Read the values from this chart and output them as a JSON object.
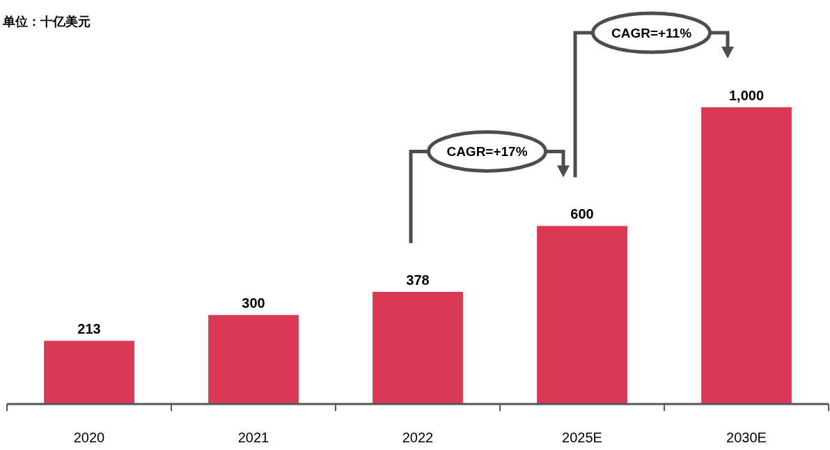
{
  "chart_data": {
    "type": "bar",
    "title": "单位：十亿美元",
    "categories": [
      "2020",
      "2021",
      "2022",
      "2025E",
      "2030E"
    ],
    "values": [
      213,
      300,
      378,
      600,
      1000
    ],
    "color": "#d93954",
    "data_labels": true,
    "value_labels": [
      "213",
      "300",
      "378",
      "600",
      "1,000"
    ],
    "annotations": [
      "CAGR=+17%",
      "CAGR=+11%"
    ]
  }
}
